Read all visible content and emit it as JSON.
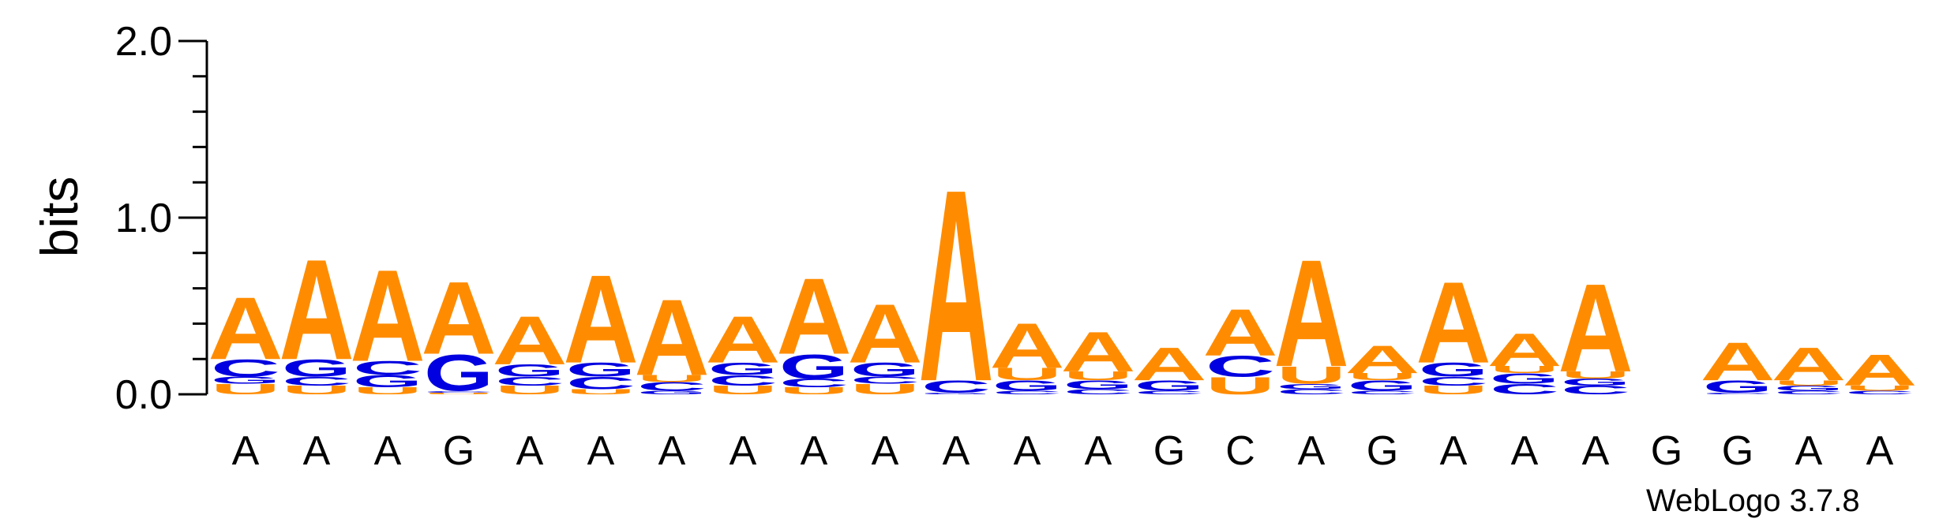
{
  "chart_data": {
    "type": "sequence-logo",
    "ylabel": "bits",
    "ylim": [
      0,
      2.0
    ],
    "yticks": [
      "0.0",
      "1.0",
      "2.0"
    ],
    "colors": {
      "A": "#ff8c00",
      "U": "#ff8c00",
      "G": "#0000e0",
      "C": "#0000e0"
    },
    "positions": [
      {
        "label": "A",
        "stack": [
          [
            "U",
            0.06
          ],
          [
            "G",
            0.04
          ],
          [
            "C",
            0.1
          ],
          [
            "A",
            0.36
          ]
        ]
      },
      {
        "label": "A",
        "stack": [
          [
            "U",
            0.05
          ],
          [
            "C",
            0.05
          ],
          [
            "G",
            0.1
          ],
          [
            "A",
            0.58
          ]
        ]
      },
      {
        "label": "A",
        "stack": [
          [
            "U",
            0.04
          ],
          [
            "G",
            0.07
          ],
          [
            "C",
            0.08
          ],
          [
            "A",
            0.53
          ]
        ]
      },
      {
        "label": "G",
        "stack": [
          [
            "U",
            0.01
          ],
          [
            "C",
            0.01
          ],
          [
            "G",
            0.21
          ],
          [
            "A",
            0.42
          ]
        ]
      },
      {
        "label": "A",
        "stack": [
          [
            "U",
            0.05
          ],
          [
            "C",
            0.05
          ],
          [
            "G",
            0.07
          ],
          [
            "A",
            0.28
          ]
        ]
      },
      {
        "label": "A",
        "stack": [
          [
            "U",
            0.03
          ],
          [
            "C",
            0.07
          ],
          [
            "G",
            0.08
          ],
          [
            "A",
            0.51
          ]
        ]
      },
      {
        "label": "A",
        "stack": [
          [
            "G",
            0.02
          ],
          [
            "C",
            0.05
          ],
          [
            "U",
            0.04
          ],
          [
            "A",
            0.44
          ]
        ]
      },
      {
        "label": "A",
        "stack": [
          [
            "U",
            0.05
          ],
          [
            "C",
            0.06
          ],
          [
            "G",
            0.07
          ],
          [
            "A",
            0.27
          ]
        ]
      },
      {
        "label": "A",
        "stack": [
          [
            "U",
            0.04
          ],
          [
            "C",
            0.05
          ],
          [
            "G",
            0.14
          ],
          [
            "A",
            0.44
          ]
        ]
      },
      {
        "label": "A",
        "stack": [
          [
            "U",
            0.06
          ],
          [
            "C",
            0.04
          ],
          [
            "G",
            0.08
          ],
          [
            "A",
            0.34
          ]
        ]
      },
      {
        "label": "A",
        "stack": [
          [
            "G",
            0.01
          ],
          [
            "C",
            0.07
          ],
          [
            "A",
            1.11
          ]
        ]
      },
      {
        "label": "A",
        "stack": [
          [
            "C",
            0.02
          ],
          [
            "G",
            0.06
          ],
          [
            "U",
            0.07
          ],
          [
            "A",
            0.26
          ]
        ]
      },
      {
        "label": "A",
        "stack": [
          [
            "C",
            0.03
          ],
          [
            "G",
            0.05
          ],
          [
            "U",
            0.05
          ],
          [
            "A",
            0.23
          ]
        ]
      },
      {
        "label": "G",
        "stack": [
          [
            "C",
            0.02
          ],
          [
            "G",
            0.06
          ],
          [
            "A",
            0.19
          ]
        ]
      },
      {
        "label": "C",
        "stack": [
          [
            "U",
            0.1
          ],
          [
            "C",
            0.12
          ],
          [
            "A",
            0.27
          ]
        ]
      },
      {
        "label": "A",
        "stack": [
          [
            "C",
            0.03
          ],
          [
            "G",
            0.03
          ],
          [
            "U",
            0.1
          ],
          [
            "A",
            0.62
          ]
        ]
      },
      {
        "label": "G",
        "stack": [
          [
            "C",
            0.02
          ],
          [
            "G",
            0.06
          ],
          [
            "U",
            0.04
          ],
          [
            "A",
            0.16
          ]
        ]
      },
      {
        "label": "A",
        "stack": [
          [
            "U",
            0.05
          ],
          [
            "C",
            0.05
          ],
          [
            "G",
            0.08
          ],
          [
            "A",
            0.47
          ]
        ]
      },
      {
        "label": "A",
        "stack": [
          [
            "C",
            0.06
          ],
          [
            "G",
            0.06
          ],
          [
            "U",
            0.04
          ],
          [
            "A",
            0.19
          ]
        ]
      },
      {
        "label": "A",
        "stack": [
          [
            "C",
            0.05
          ],
          [
            "G",
            0.04
          ],
          [
            "U",
            0.04
          ],
          [
            "A",
            0.51
          ]
        ]
      },
      {
        "label": "G",
        "stack": []
      },
      {
        "label": "G",
        "stack": [
          [
            "C",
            0.01
          ],
          [
            "G",
            0.07
          ],
          [
            "A",
            0.22
          ]
        ]
      },
      {
        "label": "A",
        "stack": [
          [
            "C",
            0.02
          ],
          [
            "G",
            0.03
          ],
          [
            "U",
            0.03
          ],
          [
            "A",
            0.19
          ]
        ]
      },
      {
        "label": "A",
        "stack": [
          [
            "C",
            0.02
          ],
          [
            "U",
            0.03
          ],
          [
            "A",
            0.18
          ]
        ]
      }
    ]
  },
  "footer": {
    "brand": "WebLogo 3.7.8"
  }
}
